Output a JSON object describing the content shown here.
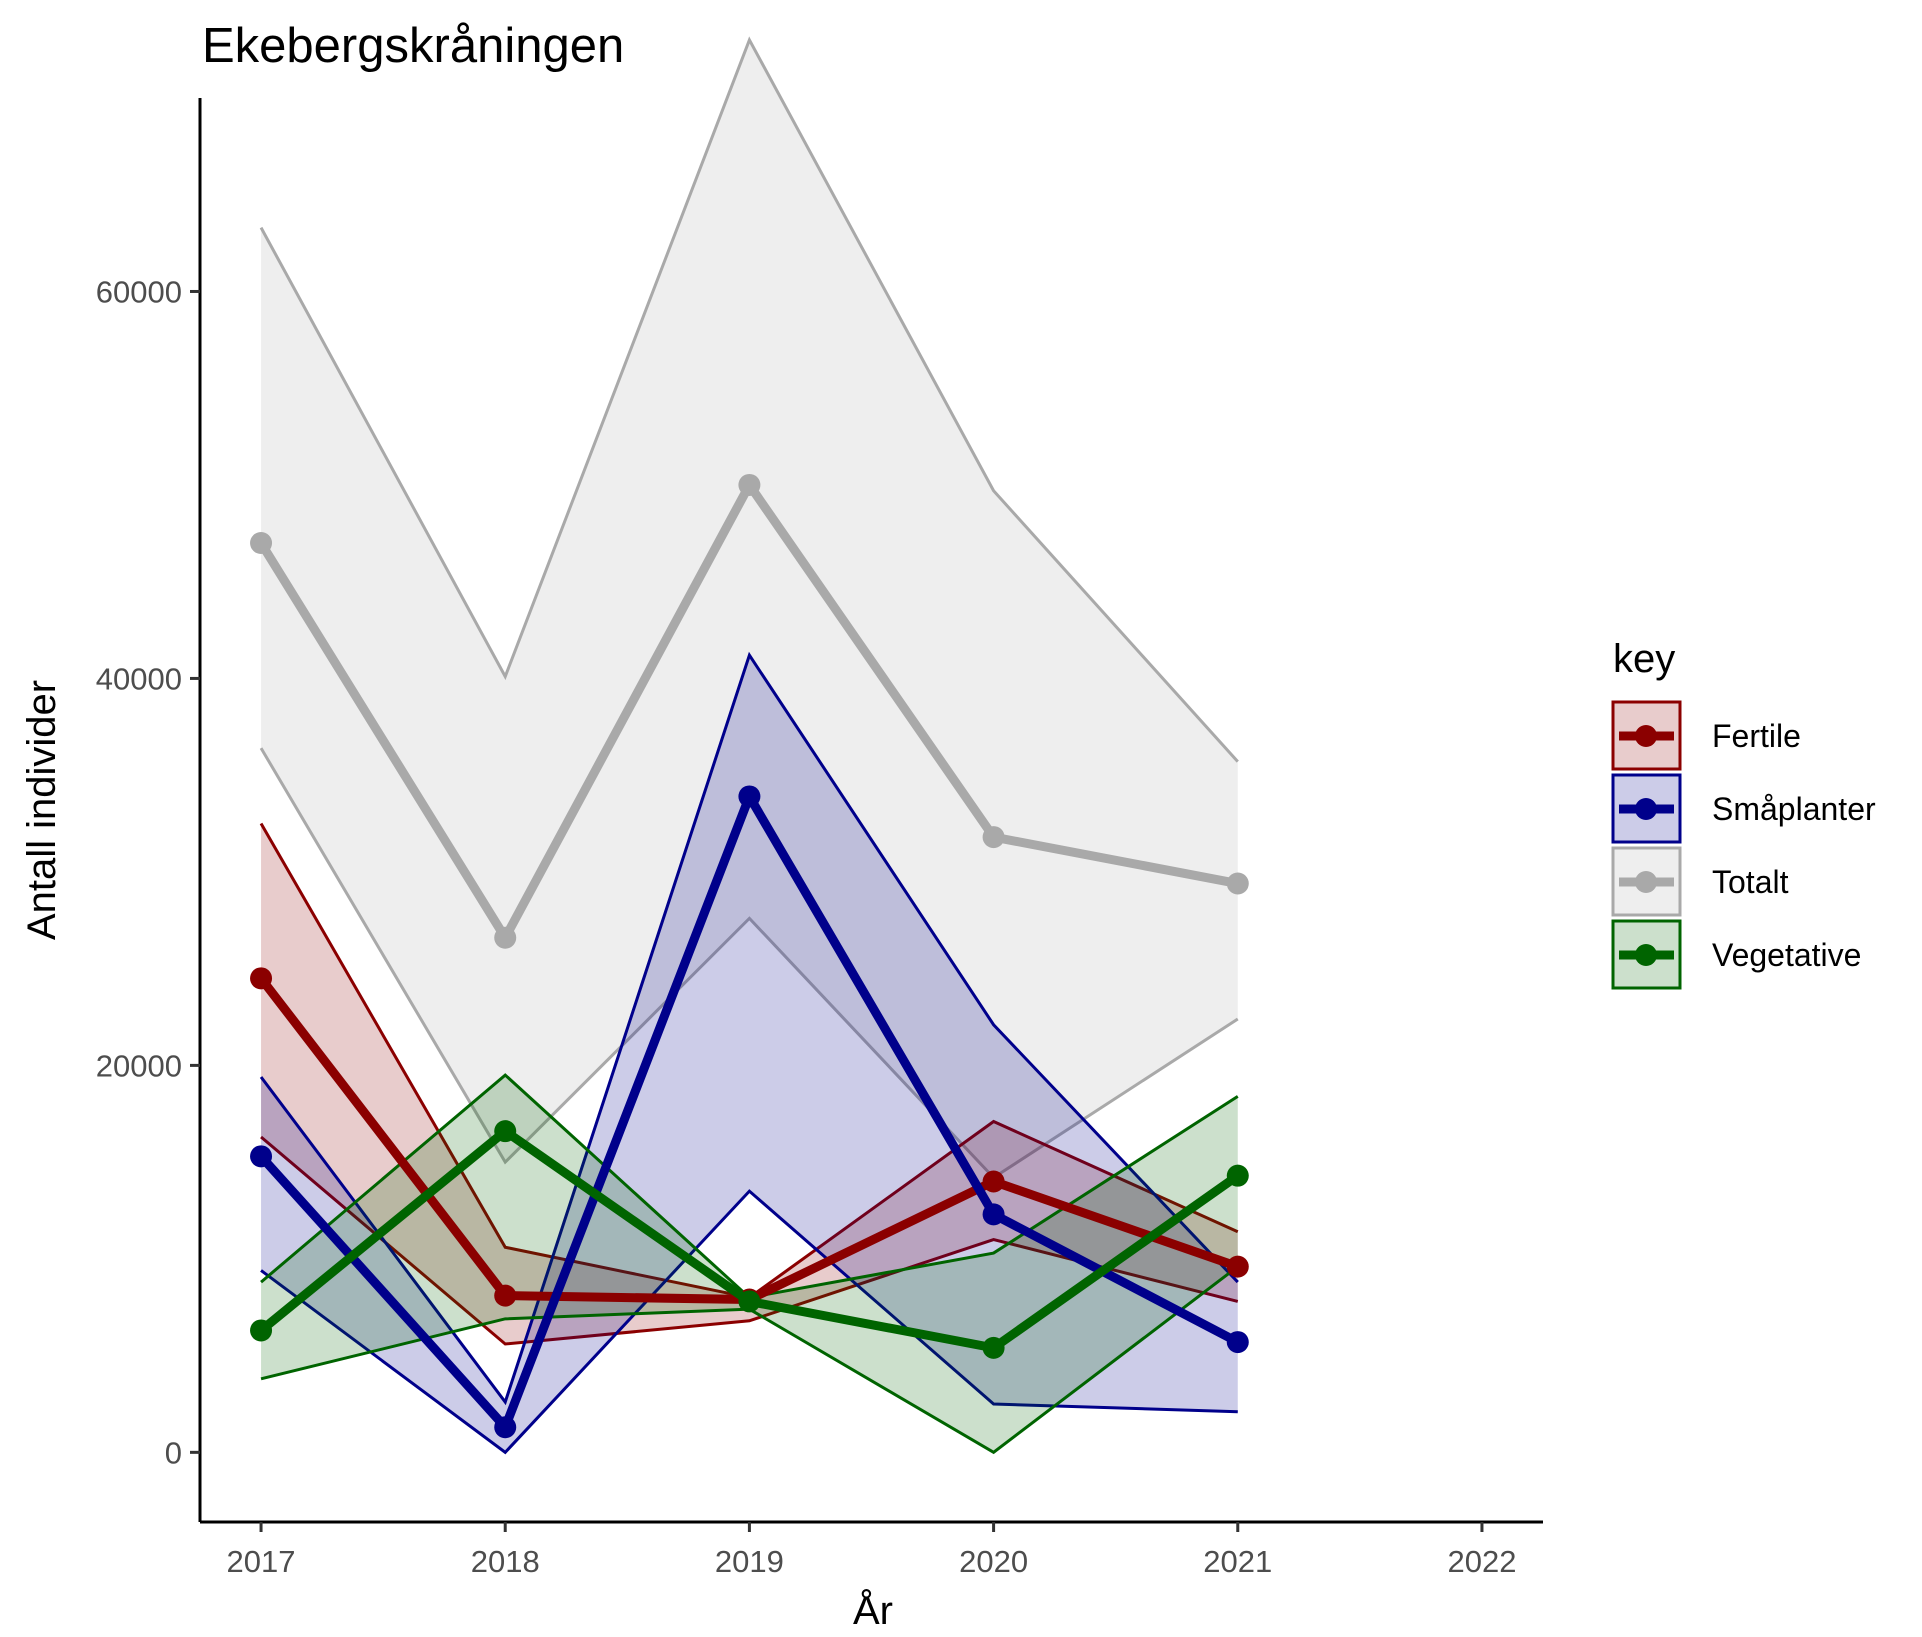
{
  "chart_data": {
    "type": "line",
    "title": "Ekebergskråningen",
    "xlabel": "År",
    "ylabel": "Antall individer",
    "x": [
      2017,
      2018,
      2019,
      2020,
      2021
    ],
    "x_ticks": [
      "2017",
      "2018",
      "2019",
      "2020",
      "2021",
      "2022"
    ],
    "y_ticks": [
      "0",
      "20000",
      "40000",
      "60000"
    ],
    "xlim": [
      2016.75,
      2022.25
    ],
    "ylim": [
      -3600,
      70000
    ],
    "grid": false,
    "legend": {
      "title": "key",
      "position": "right"
    },
    "series": [
      {
        "name": "Totalt",
        "color": "#a9a9a9",
        "values": [
          47000,
          26600,
          50000,
          31800,
          29400
        ],
        "lower": [
          36400,
          15000,
          27600,
          14200,
          22400
        ],
        "upper": [
          63300,
          40100,
          73000,
          49700,
          35700
        ]
      },
      {
        "name": "Fertile",
        "color": "#8b0000",
        "values": [
          24500,
          8100,
          7900,
          14000,
          9600
        ],
        "lower": [
          16300,
          5600,
          6800,
          11000,
          7800
        ],
        "upper": [
          32500,
          10600,
          8000,
          17100,
          11400
        ]
      },
      {
        "name": "Småplanter",
        "color": "#00008b",
        "values": [
          15300,
          1300,
          33900,
          12300,
          5700
        ],
        "lower": [
          9400,
          0,
          13500,
          2500,
          2100
        ],
        "upper": [
          19400,
          2600,
          41200,
          22100,
          8800
        ]
      },
      {
        "name": "Vegetative",
        "color": "#006400",
        "values": [
          6300,
          16600,
          7800,
          5400,
          14300
        ],
        "lower": [
          3800,
          6900,
          7400,
          0,
          9600
        ],
        "upper": [
          8800,
          19500,
          8000,
          10300,
          18400
        ]
      }
    ],
    "legend_order": [
      "Fertile",
      "Småplanter",
      "Totalt",
      "Vegetative"
    ]
  }
}
